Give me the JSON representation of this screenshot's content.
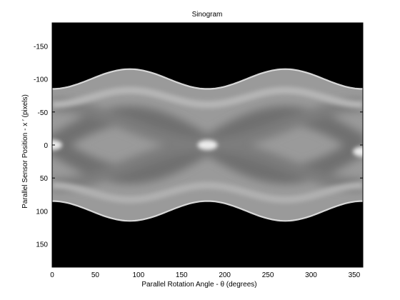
{
  "chart_data": {
    "type": "heatmap",
    "title": "Sinogram",
    "xlabel": "Parallel Rotation Angle -   θ (degrees)",
    "ylabel": "Parallel Sensor Position - x ′ (pixels)",
    "xlim": [
      0,
      360
    ],
    "ylim": [
      -185,
      185
    ],
    "y_reversed": true,
    "colormap": "gray",
    "grid": false,
    "xticks": [
      0,
      50,
      100,
      150,
      200,
      250,
      300,
      350
    ],
    "yticks": [
      -150,
      -100,
      -50,
      0,
      50,
      100,
      150
    ],
    "ytick_labels": [
      "-150",
      "-100",
      "-50",
      "0",
      "50",
      "100",
      "150"
    ],
    "support_boundary": {
      "description_values": "outer edge of nonzero region, sinusoid in degrees",
      "mean_half_width": 100,
      "amplitude": 15,
      "period_degrees": 180,
      "edge_at_0": 85,
      "edge_max": 115,
      "edge_max_at": [
        90,
        270
      ]
    },
    "bright_features": [
      {
        "x": 0,
        "y": 0
      },
      {
        "x": 180,
        "y": 0
      },
      {
        "x": 360,
        "y": 10
      }
    ]
  }
}
